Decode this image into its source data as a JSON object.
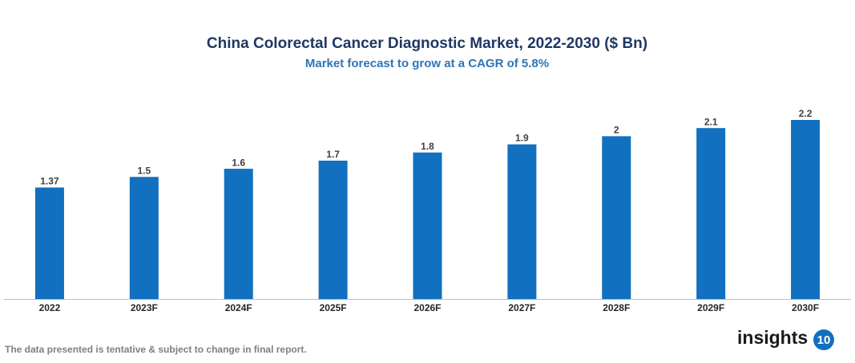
{
  "chart_data": {
    "type": "bar",
    "title": "China Colorectal Cancer Diagnostic Market, 2022-2030 ($ Bn)",
    "subtitle": "Market forecast to grow at a CAGR of 5.8%",
    "categories": [
      "2022",
      "2023F",
      "2024F",
      "2025F",
      "2026F",
      "2027F",
      "2028F",
      "2029F",
      "2030F"
    ],
    "values": [
      1.37,
      1.5,
      1.6,
      1.7,
      1.8,
      1.9,
      2,
      2.1,
      2.2
    ],
    "color": "#1170bf"
  },
  "footer": {
    "note": "The data presented is tentative & subject to change in final report.",
    "brand": "insights",
    "brand_number": "10"
  }
}
